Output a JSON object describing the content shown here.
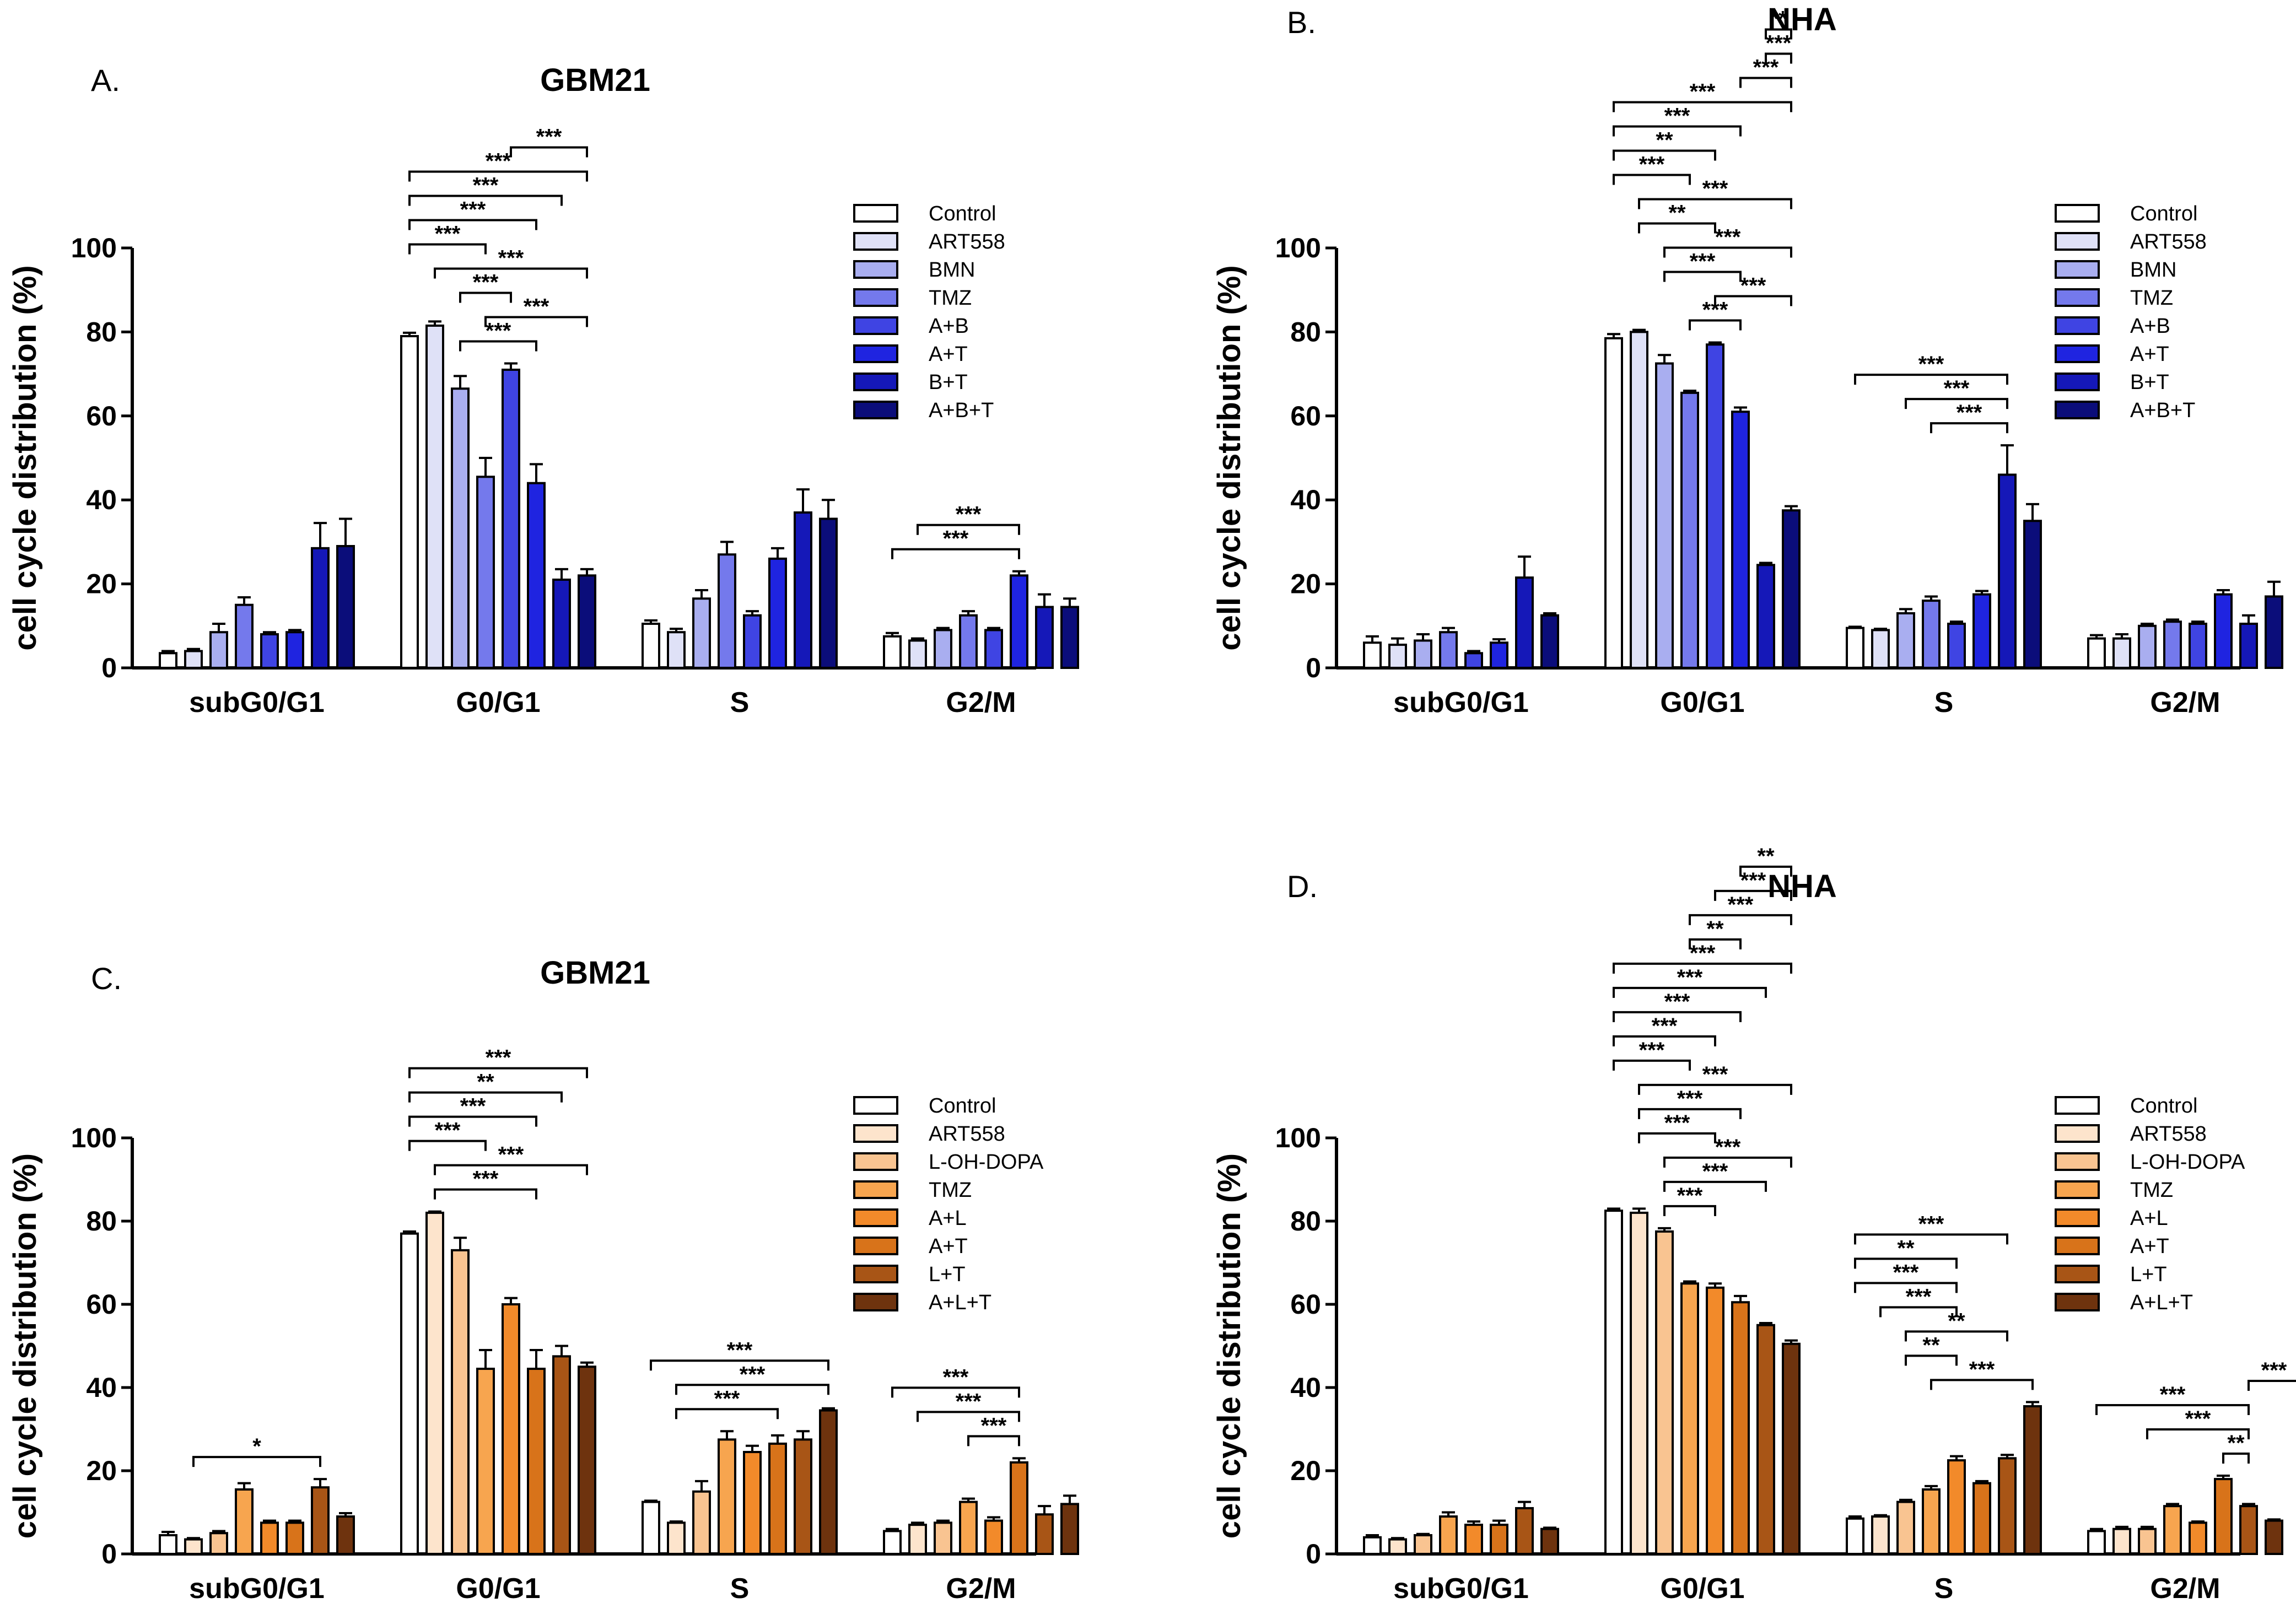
{
  "figure": {
    "panels": [
      "A",
      "B",
      "C",
      "D"
    ]
  },
  "chart_data": [
    {
      "id": "A",
      "panel_label": "A.",
      "title": "GBM21",
      "type": "bar",
      "ylabel": "cell cycle distribution (%)",
      "ylim": [
        0,
        100
      ],
      "yticks": [
        0,
        20,
        40,
        60,
        80,
        100
      ],
      "categories": [
        "subG0/G1",
        "G0/G1",
        "S",
        "G2/M"
      ],
      "legend_position": "top-right",
      "series": [
        {
          "name": "Control",
          "color": "#ffffff",
          "values": [
            3.5,
            79,
            10.5,
            7.5
          ],
          "errors": [
            0.5,
            0.8,
            0.8,
            0.8
          ]
        },
        {
          "name": "ART558",
          "color": "#dfe1f7",
          "values": [
            4,
            81.5,
            8.5,
            6.5
          ],
          "errors": [
            0.5,
            1,
            0.8,
            0.5
          ]
        },
        {
          "name": "BMN",
          "color": "#a9aef0",
          "values": [
            8.5,
            66.5,
            16.5,
            9
          ],
          "errors": [
            2,
            3,
            2,
            0.5
          ]
        },
        {
          "name": "TMZ",
          "color": "#7479ec",
          "values": [
            15,
            45.5,
            27,
            12.5
          ],
          "errors": [
            1.8,
            4.5,
            3,
            1
          ]
        },
        {
          "name": "A+B",
          "color": "#3f44e3",
          "values": [
            8,
            71,
            12.5,
            9
          ],
          "errors": [
            0.5,
            1.5,
            1,
            0.5
          ]
        },
        {
          "name": "A+T",
          "color": "#1f24e0",
          "values": [
            8.5,
            44,
            26,
            22
          ],
          "errors": [
            0.5,
            4.5,
            2.5,
            1
          ]
        },
        {
          "name": "B+T",
          "color": "#1518b8",
          "values": [
            28.5,
            21,
            37,
            14.5
          ],
          "errors": [
            6,
            2.5,
            5.5,
            3
          ]
        },
        {
          "name": "A+B+T",
          "color": "#0b0d7a",
          "values": [
            29,
            22,
            35.5,
            14.5
          ],
          "errors": [
            6.5,
            1.5,
            4.5,
            2
          ]
        }
      ],
      "significance": [
        {
          "label": "***",
          "category": "G0/G1",
          "from": 2,
          "to": 5
        },
        {
          "label": "***",
          "category": "G0/G1",
          "from": 3,
          "to": 7
        },
        {
          "label": "***",
          "category": "G0/G1",
          "from": 2,
          "to": 4
        },
        {
          "label": "***",
          "category": "G0/G1",
          "from": 1,
          "to": 7
        },
        {
          "label": "***",
          "category": "G0/G1",
          "from": 0,
          "to": 3
        },
        {
          "label": "***",
          "category": "G0/G1",
          "from": 0,
          "to": 5
        },
        {
          "label": "***",
          "category": "G0/G1",
          "from": 0,
          "to": 6
        },
        {
          "label": "***",
          "category": "G0/G1",
          "from": 0,
          "to": 7
        },
        {
          "label": "***",
          "category": "G0/G1",
          "from": 4,
          "to": 7
        },
        {
          "label": "***",
          "category": "G2/M",
          "from": 0,
          "to": 5
        },
        {
          "label": "***",
          "category": "G2/M",
          "from": 1,
          "to": 5
        }
      ]
    },
    {
      "id": "B",
      "panel_label": "B.",
      "title": "NHA",
      "type": "bar",
      "ylabel": "cell cycle distribution (%)",
      "ylim": [
        0,
        100
      ],
      "yticks": [
        0,
        20,
        40,
        60,
        80,
        100
      ],
      "categories": [
        "subG0/G1",
        "G0/G1",
        "S",
        "G2/M"
      ],
      "legend_position": "top-right",
      "series": [
        {
          "name": "Control",
          "color": "#ffffff",
          "values": [
            6,
            78.5,
            9.5,
            7
          ],
          "errors": [
            1.5,
            1,
            0.3,
            0.8
          ]
        },
        {
          "name": "ART558",
          "color": "#dfe1f7",
          "values": [
            5.5,
            80,
            9,
            7
          ],
          "errors": [
            1.5,
            0.5,
            0.3,
            1
          ]
        },
        {
          "name": "BMN",
          "color": "#a9aef0",
          "values": [
            6.5,
            72.5,
            13,
            10
          ],
          "errors": [
            1.5,
            2,
            1,
            0.5
          ]
        },
        {
          "name": "TMZ",
          "color": "#7479ec",
          "values": [
            8.5,
            65.5,
            16,
            11
          ],
          "errors": [
            1,
            0.5,
            1,
            0.5
          ]
        },
        {
          "name": "A+B",
          "color": "#3f44e3",
          "values": [
            3.5,
            77,
            10.5,
            10.5
          ],
          "errors": [
            0.5,
            0.5,
            0.5,
            0.5
          ]
        },
        {
          "name": "A+T",
          "color": "#1f24e0",
          "values": [
            6,
            61,
            17.5,
            17.5
          ],
          "errors": [
            0.8,
            1,
            0.8,
            1
          ]
        },
        {
          "name": "B+T",
          "color": "#1518b8",
          "values": [
            21.5,
            24.5,
            46,
            10.5
          ],
          "errors": [
            5,
            0.5,
            7,
            2
          ]
        },
        {
          "name": "A+B+T",
          "color": "#0b0d7a",
          "values": [
            12.5,
            37.5,
            35,
            17
          ],
          "errors": [
            0.5,
            1,
            4,
            3.5
          ]
        }
      ],
      "significance": [
        {
          "label": "***",
          "category": "G0/G1",
          "from": 3,
          "to": 5
        },
        {
          "label": "***",
          "category": "G0/G1",
          "from": 4,
          "to": 7
        },
        {
          "label": "***",
          "category": "G0/G1",
          "from": 2,
          "to": 5
        },
        {
          "label": "***",
          "category": "G0/G1",
          "from": 2,
          "to": 7
        },
        {
          "label": "**",
          "category": "G0/G1",
          "from": 1,
          "to": 4
        },
        {
          "label": "***",
          "category": "G0/G1",
          "from": 1,
          "to": 7
        },
        {
          "label": "***",
          "category": "G0/G1",
          "from": 0,
          "to": 3
        },
        {
          "label": "**",
          "category": "G0/G1",
          "from": 0,
          "to": 4
        },
        {
          "label": "***",
          "category": "G0/G1",
          "from": 0,
          "to": 5
        },
        {
          "label": "***",
          "category": "G0/G1",
          "from": 0,
          "to": 7
        },
        {
          "label": "***",
          "category": "G0/G1",
          "from": 5,
          "to": 7
        },
        {
          "label": "***",
          "category": "G0/G1",
          "from": 6,
          "to": 7
        },
        {
          "label": "**",
          "category": "G0/G1",
          "from": 6,
          "to": 7
        },
        {
          "label": "***",
          "category": "S",
          "from": 3,
          "to": 6
        },
        {
          "label": "***",
          "category": "S",
          "from": 2,
          "to": 6
        },
        {
          "label": "***",
          "category": "S",
          "from": 0,
          "to": 6
        }
      ]
    },
    {
      "id": "C",
      "panel_label": "C.",
      "title": "GBM21",
      "type": "bar",
      "ylabel": "cell cycle distribution (%)",
      "ylim": [
        0,
        100
      ],
      "yticks": [
        0,
        20,
        40,
        60,
        80,
        100
      ],
      "categories": [
        "subG0/G1",
        "G0/G1",
        "S",
        "G2/M"
      ],
      "legend_position": "top-right",
      "series": [
        {
          "name": "Control",
          "color": "#ffffff",
          "values": [
            4.5,
            77,
            12.5,
            5.5
          ],
          "errors": [
            0.8,
            0.5,
            0.3,
            0.5
          ]
        },
        {
          "name": "ART558",
          "color": "#fde4cc",
          "values": [
            3.5,
            82,
            7.5,
            7
          ],
          "errors": [
            0.3,
            0.3,
            0.3,
            0.5
          ]
        },
        {
          "name": "L-OH-DOPA",
          "color": "#f9c491",
          "values": [
            5,
            73,
            15,
            7.5
          ],
          "errors": [
            0.5,
            3,
            2.5,
            0.5
          ]
        },
        {
          "name": "TMZ",
          "color": "#f7a54f",
          "values": [
            15.5,
            44.5,
            27.5,
            12.5
          ],
          "errors": [
            1.5,
            4.5,
            2,
            0.8
          ]
        },
        {
          "name": "A+L",
          "color": "#f28a2a",
          "values": [
            7.5,
            60,
            24.5,
            8
          ],
          "errors": [
            0.5,
            1.5,
            1.5,
            0.8
          ]
        },
        {
          "name": "A+T",
          "color": "#d8731a",
          "values": [
            7.5,
            44.5,
            26.5,
            22
          ],
          "errors": [
            0.5,
            4.5,
            2,
            1
          ]
        },
        {
          "name": "L+T",
          "color": "#a85516",
          "values": [
            16,
            47.5,
            27.5,
            9.5
          ],
          "errors": [
            2,
            2.5,
            2,
            2
          ]
        },
        {
          "name": "A+L+T",
          "color": "#6e330e",
          "values": [
            9,
            45,
            34.5,
            12
          ],
          "errors": [
            0.8,
            1,
            0.5,
            2
          ]
        }
      ],
      "significance": [
        {
          "label": "*",
          "category": "subG0/G1",
          "from": 1,
          "to": 6
        },
        {
          "label": "***",
          "category": "G0/G1",
          "from": 1,
          "to": 5
        },
        {
          "label": "***",
          "category": "G0/G1",
          "from": 1,
          "to": 7
        },
        {
          "label": "***",
          "category": "G0/G1",
          "from": 0,
          "to": 3
        },
        {
          "label": "***",
          "category": "G0/G1",
          "from": 0,
          "to": 5
        },
        {
          "label": "**",
          "category": "G0/G1",
          "from": 0,
          "to": 6
        },
        {
          "label": "***",
          "category": "G0/G1",
          "from": 0,
          "to": 7
        },
        {
          "label": "***",
          "category": "S",
          "from": 1,
          "to": 5
        },
        {
          "label": "***",
          "category": "S",
          "from": 1,
          "to": 7
        },
        {
          "label": "***",
          "category": "S",
          "from": 0,
          "to": 7
        },
        {
          "label": "***",
          "category": "G2/M",
          "from": 3,
          "to": 5
        },
        {
          "label": "***",
          "category": "G2/M",
          "from": 1,
          "to": 5
        },
        {
          "label": "***",
          "category": "G2/M",
          "from": 0,
          "to": 5
        }
      ]
    },
    {
      "id": "D",
      "panel_label": "D.",
      "title": "NHA",
      "type": "bar",
      "ylabel": "cell cycle distribution (%)",
      "ylim": [
        0,
        100
      ],
      "yticks": [
        0,
        20,
        40,
        60,
        80,
        100
      ],
      "categories": [
        "subG0/G1",
        "G0/G1",
        "S",
        "G2/M"
      ],
      "legend_position": "top-right",
      "series": [
        {
          "name": "Control",
          "color": "#ffffff",
          "values": [
            4,
            82.5,
            8.5,
            5.5
          ],
          "errors": [
            0.5,
            0.5,
            0.5,
            0.5
          ]
        },
        {
          "name": "ART558",
          "color": "#fde4cc",
          "values": [
            3.5,
            82,
            9,
            6
          ],
          "errors": [
            0.3,
            1,
            0.3,
            0.5
          ]
        },
        {
          "name": "L-OH-DOPA",
          "color": "#f9c491",
          "values": [
            4.5,
            77.5,
            12.5,
            6
          ],
          "errors": [
            0.3,
            0.8,
            0.5,
            0.5
          ]
        },
        {
          "name": "TMZ",
          "color": "#f7a54f",
          "values": [
            9,
            65,
            15.5,
            11.5
          ],
          "errors": [
            1,
            0.5,
            0.8,
            0.5
          ]
        },
        {
          "name": "A+L",
          "color": "#f28a2a",
          "values": [
            7,
            64,
            22.5,
            7.5
          ],
          "errors": [
            0.8,
            1,
            1,
            0.3
          ]
        },
        {
          "name": "A+T",
          "color": "#d8731a",
          "values": [
            7,
            60.5,
            17,
            18
          ],
          "errors": [
            1,
            1.5,
            0.5,
            0.8
          ]
        },
        {
          "name": "L+T",
          "color": "#a85516",
          "values": [
            11,
            55,
            23,
            11.5
          ],
          "errors": [
            1.5,
            0.5,
            0.8,
            0.5
          ]
        },
        {
          "name": "A+L+T",
          "color": "#6e330e",
          "values": [
            6,
            50.5,
            35.5,
            8
          ],
          "errors": [
            0.3,
            0.8,
            1,
            0.3
          ]
        }
      ],
      "significance": [
        {
          "label": "***",
          "category": "G0/G1",
          "from": 2,
          "to": 4
        },
        {
          "label": "***",
          "category": "G0/G1",
          "from": 2,
          "to": 6
        },
        {
          "label": "***",
          "category": "G0/G1",
          "from": 2,
          "to": 7
        },
        {
          "label": "***",
          "category": "G0/G1",
          "from": 1,
          "to": 4
        },
        {
          "label": "***",
          "category": "G0/G1",
          "from": 1,
          "to": 5
        },
        {
          "label": "***",
          "category": "G0/G1",
          "from": 1,
          "to": 7
        },
        {
          "label": "***",
          "category": "G0/G1",
          "from": 0,
          "to": 3
        },
        {
          "label": "***",
          "category": "G0/G1",
          "from": 0,
          "to": 4
        },
        {
          "label": "***",
          "category": "G0/G1",
          "from": 0,
          "to": 5
        },
        {
          "label": "***",
          "category": "G0/G1",
          "from": 0,
          "to": 6
        },
        {
          "label": "***",
          "category": "G0/G1",
          "from": 0,
          "to": 7
        },
        {
          "label": "**",
          "category": "G0/G1",
          "from": 3,
          "to": 5
        },
        {
          "label": "***",
          "category": "G0/G1",
          "from": 3,
          "to": 7
        },
        {
          "label": "***",
          "category": "G0/G1",
          "from": 4,
          "to": 7
        },
        {
          "label": "**",
          "category": "G0/G1",
          "from": 5,
          "to": 7
        },
        {
          "label": "***",
          "category": "S",
          "from": 3,
          "to": 7
        },
        {
          "label": "**",
          "category": "S",
          "from": 2,
          "to": 4
        },
        {
          "label": "**",
          "category": "S",
          "from": 2,
          "to": 6
        },
        {
          "label": "***",
          "category": "S",
          "from": 1,
          "to": 4
        },
        {
          "label": "***",
          "category": "S",
          "from": 0,
          "to": 4
        },
        {
          "label": "**",
          "category": "S",
          "from": 0,
          "to": 4
        },
        {
          "label": "***",
          "category": "S",
          "from": 0,
          "to": 6
        },
        {
          "label": "**",
          "category": "G2/M",
          "from": 5,
          "to": 6
        },
        {
          "label": "***",
          "category": "G2/M",
          "from": 2,
          "to": 6
        },
        {
          "label": "***",
          "category": "G2/M",
          "from": 0,
          "to": 6
        },
        {
          "label": "***",
          "category": "G2/M",
          "from": 6,
          "to": 8
        }
      ]
    }
  ]
}
